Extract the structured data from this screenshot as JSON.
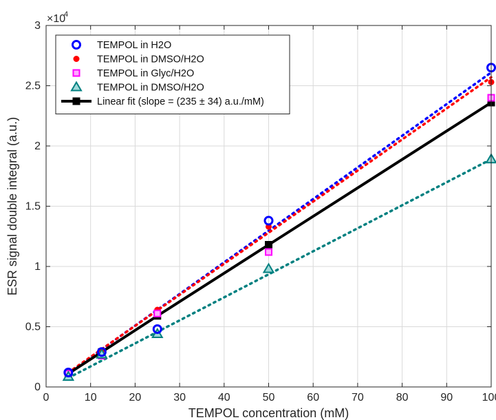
{
  "chart_data": {
    "type": "scatter",
    "xlabel": "TEMPOL concentration (mM)",
    "ylabel": "ESR signal double integral (a.u.)",
    "y_exponent_base": "×10",
    "y_exponent_power": "4",
    "xlim": [
      0,
      100
    ],
    "ylim": [
      0,
      30000
    ],
    "x_ticks": [
      0,
      10,
      20,
      30,
      40,
      50,
      60,
      70,
      80,
      90,
      100
    ],
    "y_ticks": [
      0,
      5000,
      10000,
      15000,
      20000,
      25000,
      30000
    ],
    "y_tick_labels": [
      "0",
      "0.5",
      "1",
      "1.5",
      "2",
      "2.5",
      "3"
    ],
    "grid": true,
    "legend_position": "top-left",
    "series": [
      {
        "name": "TEMPOL in H2O",
        "marker": "open-circle",
        "color": "#0000ff",
        "x": [
          5,
          12.5,
          25,
          50,
          100
        ],
        "y": [
          1200,
          2900,
          4800,
          13800,
          26500
        ],
        "fit": {
          "x": [
            5,
            100
          ],
          "y": [
            1150,
            26100
          ],
          "style": "dotted",
          "color": "#0000ff"
        }
      },
      {
        "name": "TEMPOL in DMSO/H2O",
        "marker": "filled-dot",
        "color": "#ff0000",
        "x": [
          5,
          12.5,
          25,
          50,
          100
        ],
        "y": [
          1150,
          2950,
          6400,
          13300,
          25300
        ],
        "fit": {
          "x": [
            5,
            100
          ],
          "y": [
            1200,
            25700
          ],
          "style": "dotted",
          "color": "#ff0000"
        }
      },
      {
        "name": "TEMPOL in Glyc/H2O",
        "marker": "square",
        "color": "#ff00ff",
        "x": [
          5,
          12.5,
          25,
          50,
          100
        ],
        "y": [
          1100,
          2600,
          6100,
          11200,
          24000
        ],
        "fit": null
      },
      {
        "name": "TEMPOL in DMSO/H2O",
        "marker": "triangle",
        "color": "#008080",
        "x": [
          5,
          12.5,
          25,
          50,
          100
        ],
        "y": [
          850,
          2700,
          4400,
          9800,
          18900
        ],
        "fit": {
          "x": [
            5,
            100
          ],
          "y": [
            750,
            18900
          ],
          "style": "dotted",
          "color": "#008080"
        }
      },
      {
        "name": "Linear fit (slope = (235 ± 34) a.u./mM)",
        "marker": "filled-square-line",
        "color": "#000000",
        "x": [
          5,
          12.5,
          25,
          50,
          100
        ],
        "y": [
          1100,
          2900,
          5900,
          11800,
          23600
        ],
        "fit": null
      }
    ]
  }
}
